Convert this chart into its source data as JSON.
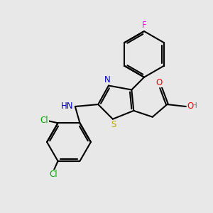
{
  "background_color": "#e8e8e8",
  "bond_color": "#000000",
  "bond_width": 1.5,
  "atom_colors": {
    "C": "#000000",
    "N": "#0000cc",
    "S": "#bbaa00",
    "O": "#ff0000",
    "F": "#ff00ff",
    "Cl": "#00aa00",
    "H": "#777777"
  },
  "font_size": 8.5,
  "figsize": [
    3.0,
    3.0
  ],
  "dpi": 100,
  "xlim": [
    0.0,
    10.0
  ],
  "ylim": [
    0.0,
    10.0
  ]
}
